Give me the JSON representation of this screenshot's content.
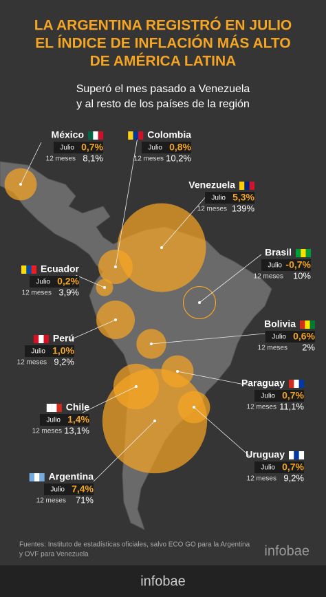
{
  "title": [
    "LA ARGENTINA REGISTRÓ EN JULIO",
    "EL ÍNDICE DE INFLACIÓN MÁS ALTO",
    "DE AMÉRICA LATINA"
  ],
  "subtitle": [
    "Superó el mes pasado a Venezuela",
    "y al resto de los países de la región"
  ],
  "labels": {
    "month": "Julio",
    "year": "12 meses"
  },
  "countries": [
    {
      "name": "México",
      "monthly": 0.7,
      "monthly_label": "0,7%",
      "annual": 8.1,
      "annual_label": "8,1%"
    },
    {
      "name": "Colombia",
      "monthly": 0.8,
      "monthly_label": "0,8%",
      "annual": 10.2,
      "annual_label": "10,2%"
    },
    {
      "name": "Venezuela",
      "monthly": 5.3,
      "monthly_label": "5,3%",
      "annual": 139,
      "annual_label": "139%"
    },
    {
      "name": "Brasil",
      "monthly": -0.7,
      "monthly_label": "-0,7%",
      "annual": 10,
      "annual_label": "10%"
    },
    {
      "name": "Ecuador",
      "monthly": 0.2,
      "monthly_label": "0,2%",
      "annual": 3.9,
      "annual_label": "3,9%"
    },
    {
      "name": "Perú",
      "monthly": 1.0,
      "monthly_label": "1,0%",
      "annual": 9.2,
      "annual_label": "9,2%"
    },
    {
      "name": "Bolivia",
      "monthly": 0.6,
      "monthly_label": "0,6%",
      "annual": 2,
      "annual_label": "2%"
    },
    {
      "name": "Paraguay",
      "monthly": 0.7,
      "monthly_label": "0,7%",
      "annual": 11.1,
      "annual_label": "11,1%"
    },
    {
      "name": "Chile",
      "monthly": 1.4,
      "monthly_label": "1,4%",
      "annual": 13.1,
      "annual_label": "13,1%"
    },
    {
      "name": "Uruguay",
      "monthly": 0.7,
      "monthly_label": "0,7%",
      "annual": 9.2,
      "annual_label": "9,2%"
    },
    {
      "name": "Argentina",
      "monthly": 7.4,
      "monthly_label": "7,4%",
      "annual": 71,
      "annual_label": "71%"
    }
  ],
  "source": [
    "Fuentes: Instituto de estadísticas oficiales, salvo ECO GO para la Argentina",
    "y OVF para Venezuela"
  ],
  "brand": "infobae"
}
